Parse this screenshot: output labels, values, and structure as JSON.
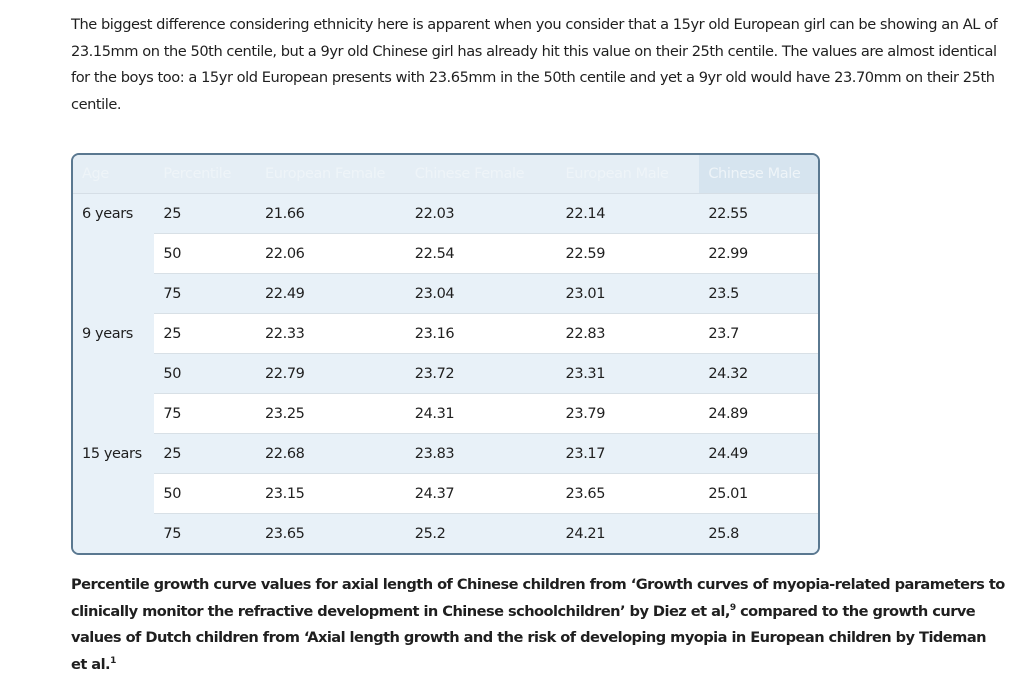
{
  "intro": {
    "text": "The biggest difference considering ethnicity here is apparent when you consider that a 15yr old European girl can be showing an AL of 23.15mm on the 50th centile, but a 9yr old Chinese girl has already hit this value on their 25th centile.  The values are almost identical for the boys too: a 15yr old European presents with 23.65mm in the 50th centile and yet a 9yr old would have 23.70mm on their 25th centile."
  },
  "table": {
    "headers": [
      "Age",
      "Percentile",
      "European Female",
      "Chinese Female",
      "European Male",
      "Chinese Male"
    ],
    "groups": [
      {
        "age": "6 years",
        "rows": [
          [
            "25",
            "21.66",
            "22.03",
            "22.14",
            "22.55"
          ],
          [
            "50",
            "22.06",
            "22.54",
            "22.59",
            "22.99"
          ],
          [
            "75",
            "22.49",
            "23.04",
            "23.01",
            "23.5"
          ]
        ]
      },
      {
        "age": "9 years",
        "rows": [
          [
            "25",
            "22.33",
            "23.16",
            "22.83",
            "23.7"
          ],
          [
            "50",
            "22.79",
            "23.72",
            "23.31",
            "24.32"
          ],
          [
            "75",
            "23.25",
            "24.31",
            "23.79",
            "24.89"
          ]
        ]
      },
      {
        "age": "15 years",
        "rows": [
          [
            "25",
            "22.68",
            "23.83",
            "23.17",
            "24.49"
          ],
          [
            "50",
            "23.15",
            "24.37",
            "23.65",
            "25.01"
          ],
          [
            "75",
            "23.65",
            "25.2",
            "24.21",
            "25.8"
          ]
        ]
      }
    ]
  },
  "caption": {
    "part1": "Percentile growth curve values for axial length of Chinese children from ‘Growth curves of myopia-related parameters to clinically monitor the refractive development in Chinese schoolchildren’ by Diez et al,",
    "ref1": "9",
    "part2": " compared to the growth curve values of Dutch children from ‘Axial length growth and the risk of developing myopia in European children by Tideman et al.",
    "ref2": "1"
  }
}
